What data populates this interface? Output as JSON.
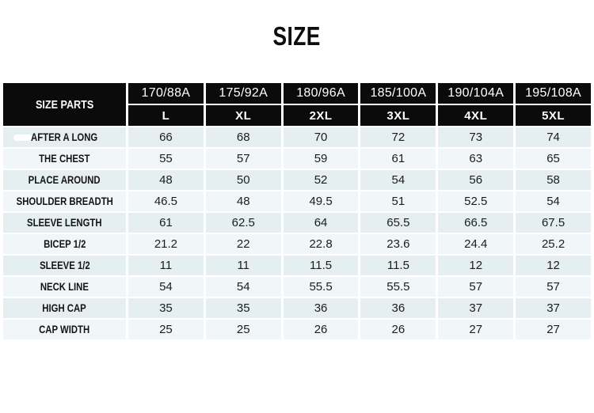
{
  "page_title": "SIZE",
  "table": {
    "corner_label": "SIZE PARTS",
    "size_codes": [
      "170/88A",
      "175/92A",
      "180/96A",
      "185/100A",
      "190/104A",
      "195/108A"
    ],
    "size_labels": [
      "L",
      "XL",
      "2XL",
      "3XL",
      "4XL",
      "5XL"
    ],
    "rows": [
      {
        "label": "AFTER A LONG",
        "values": [
          "66",
          "68",
          "70",
          "72",
          "73",
          "74"
        ]
      },
      {
        "label": "THE CHEST",
        "values": [
          "55",
          "57",
          "59",
          "61",
          "63",
          "65"
        ]
      },
      {
        "label": "PLACE AROUND",
        "values": [
          "48",
          "50",
          "52",
          "54",
          "56",
          "58"
        ]
      },
      {
        "label": "SHOULDER BREADTH",
        "values": [
          "46.5",
          "48",
          "49.5",
          "51",
          "52.5",
          "54"
        ]
      },
      {
        "label": "SLEEVE LENGTH",
        "values": [
          "61",
          "62.5",
          "64",
          "65.5",
          "66.5",
          "67.5"
        ]
      },
      {
        "label": "BICEP 1/2",
        "values": [
          "21.2",
          "22",
          "22.8",
          "23.6",
          "24.4",
          "25.2"
        ]
      },
      {
        "label": "SLEEVE 1/2",
        "values": [
          "11",
          "11",
          "11.5",
          "11.5",
          "12",
          "12"
        ]
      },
      {
        "label": "NECK LINE",
        "values": [
          "54",
          "54",
          "55.5",
          "55.5",
          "57",
          "57"
        ]
      },
      {
        "label": "HIGH CAP",
        "values": [
          "35",
          "35",
          "36",
          "36",
          "37",
          "37"
        ]
      },
      {
        "label": "CAP WIDTH",
        "values": [
          "25",
          "25",
          "26",
          "26",
          "27",
          "27"
        ]
      }
    ]
  },
  "colors": {
    "header_bg": "#0b0b0b",
    "header_text": "#ffffff",
    "row_odd_bg": "#e5eef1",
    "row_even_bg": "#f1f7f8",
    "body_text": "#1c1c1c",
    "page_bg": "#ffffff"
  }
}
